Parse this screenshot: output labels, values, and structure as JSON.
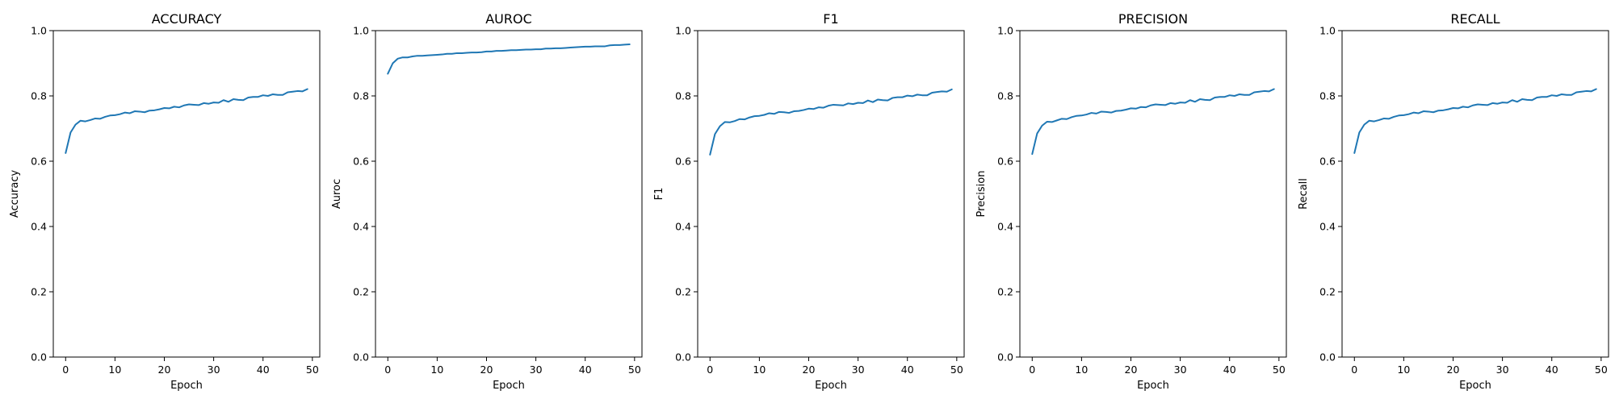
{
  "chart_data": [
    {
      "type": "line",
      "title": "ACCURACY",
      "xlabel": "Epoch",
      "ylabel": "Accuracy",
      "xlim": [
        -2.5,
        51.5
      ],
      "ylim": [
        0.0,
        1.0
      ],
      "xticks": [
        "0",
        "10",
        "20",
        "30",
        "40",
        "50"
      ],
      "yticks": [
        "0.0",
        "0.2",
        "0.4",
        "0.6",
        "0.8",
        "1.0"
      ],
      "grid": false,
      "color": "#1f77b4",
      "x": [
        0,
        1,
        2,
        3,
        4,
        5,
        6,
        7,
        8,
        9,
        10,
        11,
        12,
        13,
        14,
        15,
        16,
        17,
        18,
        19,
        20,
        21,
        22,
        23,
        24,
        25,
        26,
        27,
        28,
        29,
        30,
        31,
        32,
        33,
        34,
        35,
        36,
        37,
        38,
        39,
        40,
        41,
        42,
        43,
        44,
        45,
        46,
        47,
        48,
        49
      ],
      "series": [
        {
          "values": [
            0.625,
            0.688,
            0.712,
            0.724,
            0.722,
            0.726,
            0.731,
            0.73,
            0.736,
            0.74,
            0.741,
            0.744,
            0.749,
            0.747,
            0.753,
            0.752,
            0.75,
            0.755,
            0.756,
            0.759,
            0.763,
            0.762,
            0.767,
            0.765,
            0.771,
            0.774,
            0.773,
            0.772,
            0.778,
            0.776,
            0.78,
            0.779,
            0.787,
            0.782,
            0.79,
            0.788,
            0.787,
            0.795,
            0.797,
            0.797,
            0.802,
            0.8,
            0.805,
            0.803,
            0.803,
            0.811,
            0.813,
            0.815,
            0.814,
            0.821
          ]
        }
      ]
    },
    {
      "type": "line",
      "title": "AUROC",
      "xlabel": "Epoch",
      "ylabel": "Auroc",
      "xlim": [
        -2.5,
        51.5
      ],
      "ylim": [
        0.0,
        1.0
      ],
      "xticks": [
        "0",
        "10",
        "20",
        "30",
        "40",
        "50"
      ],
      "yticks": [
        "0.0",
        "0.2",
        "0.4",
        "0.6",
        "0.8",
        "1.0"
      ],
      "grid": false,
      "color": "#1f77b4",
      "x": [
        0,
        1,
        2,
        3,
        4,
        5,
        6,
        7,
        8,
        9,
        10,
        11,
        12,
        13,
        14,
        15,
        16,
        17,
        18,
        19,
        20,
        21,
        22,
        23,
        24,
        25,
        26,
        27,
        28,
        29,
        30,
        31,
        32,
        33,
        34,
        35,
        36,
        37,
        38,
        39,
        40,
        41,
        42,
        43,
        44,
        45,
        46,
        47,
        48,
        49
      ],
      "series": [
        {
          "values": [
            0.868,
            0.9,
            0.914,
            0.918,
            0.918,
            0.921,
            0.923,
            0.923,
            0.924,
            0.925,
            0.926,
            0.927,
            0.929,
            0.929,
            0.931,
            0.931,
            0.932,
            0.933,
            0.933,
            0.934,
            0.936,
            0.936,
            0.938,
            0.938,
            0.939,
            0.94,
            0.94,
            0.941,
            0.942,
            0.942,
            0.943,
            0.943,
            0.945,
            0.945,
            0.946,
            0.946,
            0.947,
            0.948,
            0.949,
            0.95,
            0.951,
            0.951,
            0.952,
            0.952,
            0.952,
            0.955,
            0.956,
            0.956,
            0.957,
            0.958
          ]
        }
      ]
    },
    {
      "type": "line",
      "title": "F1",
      "xlabel": "Epoch",
      "ylabel": "F1",
      "xlim": [
        -2.5,
        51.5
      ],
      "ylim": [
        0.0,
        1.0
      ],
      "xticks": [
        "0",
        "10",
        "20",
        "30",
        "40",
        "50"
      ],
      "yticks": [
        "0.0",
        "0.2",
        "0.4",
        "0.6",
        "0.8",
        "1.0"
      ],
      "grid": false,
      "color": "#1f77b4",
      "x": [
        0,
        1,
        2,
        3,
        4,
        5,
        6,
        7,
        8,
        9,
        10,
        11,
        12,
        13,
        14,
        15,
        16,
        17,
        18,
        19,
        20,
        21,
        22,
        23,
        24,
        25,
        26,
        27,
        28,
        29,
        30,
        31,
        32,
        33,
        34,
        35,
        36,
        37,
        38,
        39,
        40,
        41,
        42,
        43,
        44,
        45,
        46,
        47,
        48,
        49
      ],
      "series": [
        {
          "values": [
            0.62,
            0.683,
            0.707,
            0.72,
            0.719,
            0.723,
            0.729,
            0.728,
            0.734,
            0.738,
            0.739,
            0.742,
            0.747,
            0.745,
            0.751,
            0.75,
            0.748,
            0.753,
            0.754,
            0.757,
            0.761,
            0.76,
            0.765,
            0.764,
            0.77,
            0.773,
            0.772,
            0.771,
            0.777,
            0.775,
            0.779,
            0.778,
            0.786,
            0.781,
            0.789,
            0.787,
            0.786,
            0.794,
            0.796,
            0.796,
            0.801,
            0.799,
            0.804,
            0.802,
            0.802,
            0.81,
            0.812,
            0.814,
            0.813,
            0.82
          ]
        }
      ]
    },
    {
      "type": "line",
      "title": "PRECISION",
      "xlabel": "Epoch",
      "ylabel": "Precision",
      "xlim": [
        -2.5,
        51.5
      ],
      "ylim": [
        0.0,
        1.0
      ],
      "xticks": [
        "0",
        "10",
        "20",
        "30",
        "40",
        "50"
      ],
      "yticks": [
        "0.0",
        "0.2",
        "0.4",
        "0.6",
        "0.8",
        "1.0"
      ],
      "grid": false,
      "color": "#1f77b4",
      "x": [
        0,
        1,
        2,
        3,
        4,
        5,
        6,
        7,
        8,
        9,
        10,
        11,
        12,
        13,
        14,
        15,
        16,
        17,
        18,
        19,
        20,
        21,
        22,
        23,
        24,
        25,
        26,
        27,
        28,
        29,
        30,
        31,
        32,
        33,
        34,
        35,
        36,
        37,
        38,
        39,
        40,
        41,
        42,
        43,
        44,
        45,
        46,
        47,
        48,
        49
      ],
      "series": [
        {
          "values": [
            0.622,
            0.685,
            0.709,
            0.721,
            0.72,
            0.725,
            0.73,
            0.729,
            0.735,
            0.739,
            0.74,
            0.743,
            0.748,
            0.746,
            0.752,
            0.751,
            0.749,
            0.754,
            0.755,
            0.758,
            0.762,
            0.761,
            0.766,
            0.765,
            0.771,
            0.774,
            0.773,
            0.772,
            0.778,
            0.776,
            0.78,
            0.779,
            0.787,
            0.782,
            0.79,
            0.788,
            0.787,
            0.795,
            0.797,
            0.797,
            0.802,
            0.8,
            0.805,
            0.803,
            0.803,
            0.811,
            0.813,
            0.815,
            0.814,
            0.821
          ]
        }
      ]
    },
    {
      "type": "line",
      "title": "RECALL",
      "xlabel": "Epoch",
      "ylabel": "Recall",
      "xlim": [
        -2.5,
        51.5
      ],
      "ylim": [
        0.0,
        1.0
      ],
      "xticks": [
        "0",
        "10",
        "20",
        "30",
        "40",
        "50"
      ],
      "yticks": [
        "0.0",
        "0.2",
        "0.4",
        "0.6",
        "0.8",
        "1.0"
      ],
      "grid": false,
      "color": "#1f77b4",
      "x": [
        0,
        1,
        2,
        3,
        4,
        5,
        6,
        7,
        8,
        9,
        10,
        11,
        12,
        13,
        14,
        15,
        16,
        17,
        18,
        19,
        20,
        21,
        22,
        23,
        24,
        25,
        26,
        27,
        28,
        29,
        30,
        31,
        32,
        33,
        34,
        35,
        36,
        37,
        38,
        39,
        40,
        41,
        42,
        43,
        44,
        45,
        46,
        47,
        48,
        49
      ],
      "series": [
        {
          "values": [
            0.625,
            0.688,
            0.712,
            0.724,
            0.722,
            0.726,
            0.731,
            0.73,
            0.736,
            0.74,
            0.741,
            0.744,
            0.749,
            0.747,
            0.753,
            0.752,
            0.75,
            0.755,
            0.756,
            0.759,
            0.763,
            0.762,
            0.767,
            0.765,
            0.771,
            0.774,
            0.773,
            0.772,
            0.778,
            0.776,
            0.78,
            0.779,
            0.787,
            0.782,
            0.79,
            0.788,
            0.787,
            0.795,
            0.797,
            0.797,
            0.802,
            0.8,
            0.805,
            0.803,
            0.803,
            0.811,
            0.813,
            0.815,
            0.814,
            0.821
          ]
        }
      ]
    }
  ]
}
